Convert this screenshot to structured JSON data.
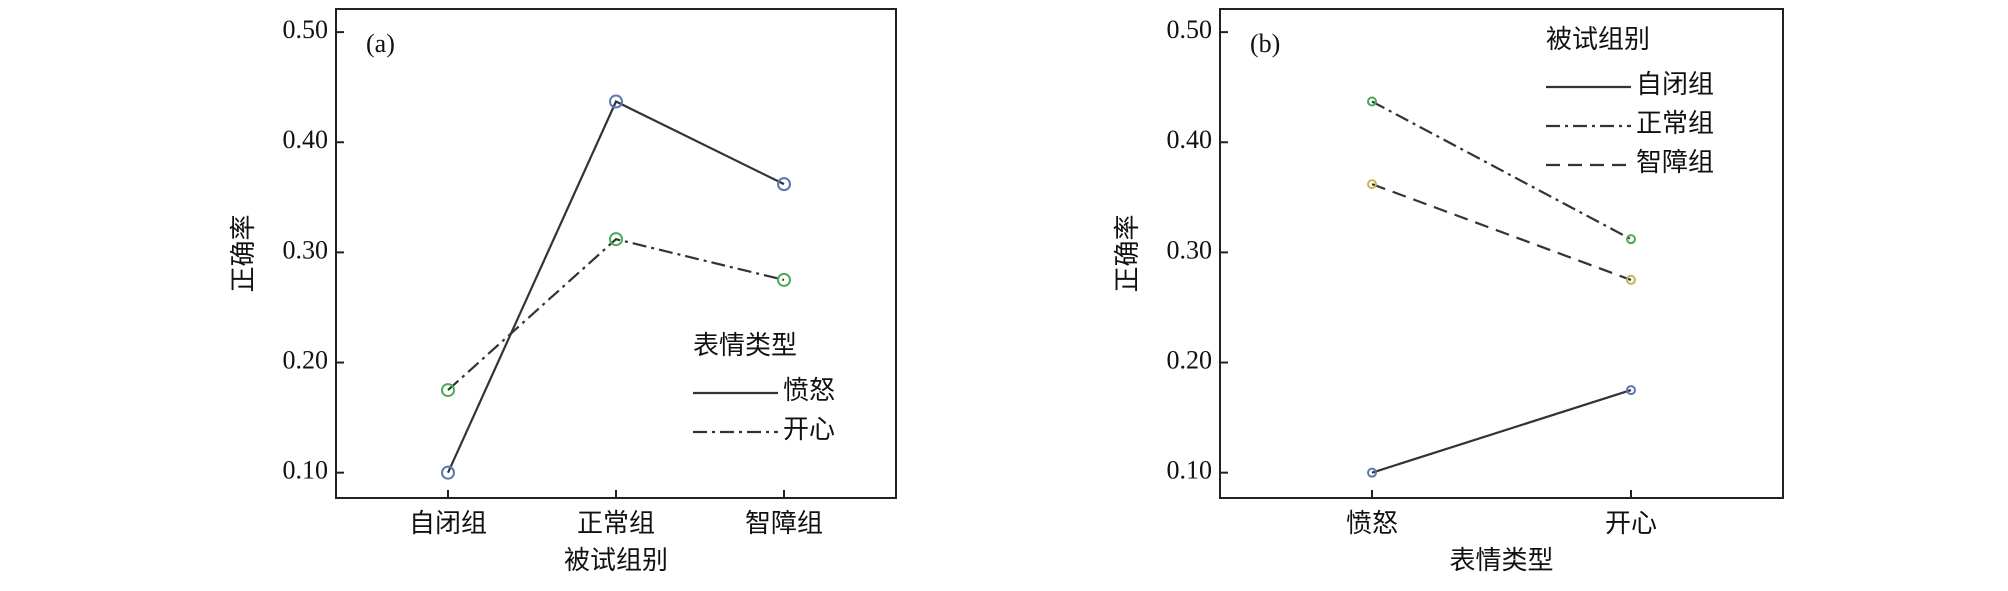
{
  "chart_data": [
    {
      "type": "line",
      "annotation": "(a)",
      "x_label": "被试组别",
      "y_label": "正确率",
      "legend_title": "表情类型",
      "categories": [
        "自闭组",
        "正常组",
        "智障组"
      ],
      "series": [
        {
          "name": "愤怒",
          "color": "#333333",
          "marker_color": "#5a78b0",
          "dash": "solid",
          "values": [
            0.1,
            0.437,
            0.362
          ]
        },
        {
          "name": "开心",
          "color": "#333333",
          "marker_color": "#4caa5a",
          "dash": "dashdot",
          "values": [
            0.175,
            0.312,
            0.275
          ]
        }
      ],
      "ylim": [
        0.077,
        0.521
      ],
      "yticks": [
        {
          "value": 0.1,
          "label": "0.10"
        },
        {
          "value": 0.2,
          "label": "0.20"
        },
        {
          "value": 0.3,
          "label": "0.30"
        },
        {
          "value": 0.4,
          "label": "0.40"
        },
        {
          "value": 0.5,
          "label": "0.50"
        }
      ]
    },
    {
      "type": "line",
      "annotation": "(b)",
      "x_label": "表情类型",
      "y_label": "正确率",
      "legend_title": "被试组别",
      "categories": [
        "愤怒",
        "开心"
      ],
      "series": [
        {
          "name": "自闭组",
          "color": "#333333",
          "marker_color": "#5a78b0",
          "dash": "solid",
          "values": [
            0.1,
            0.175
          ]
        },
        {
          "name": "正常组",
          "color": "#333333",
          "marker_color": "#4caa5a",
          "dash": "dashdot",
          "values": [
            0.437,
            0.312
          ]
        },
        {
          "name": "智障组",
          "color": "#333333",
          "marker_color": "#c8b450",
          "dash": "dashed",
          "values": [
            0.362,
            0.275
          ]
        }
      ],
      "ylim": [
        0.077,
        0.521
      ],
      "yticks": [
        {
          "value": 0.1,
          "label": "0.10"
        },
        {
          "value": 0.2,
          "label": "0.20"
        },
        {
          "value": 0.3,
          "label": "0.30"
        },
        {
          "value": 0.4,
          "label": "0.40"
        },
        {
          "value": 0.5,
          "label": "0.50"
        }
      ]
    }
  ]
}
